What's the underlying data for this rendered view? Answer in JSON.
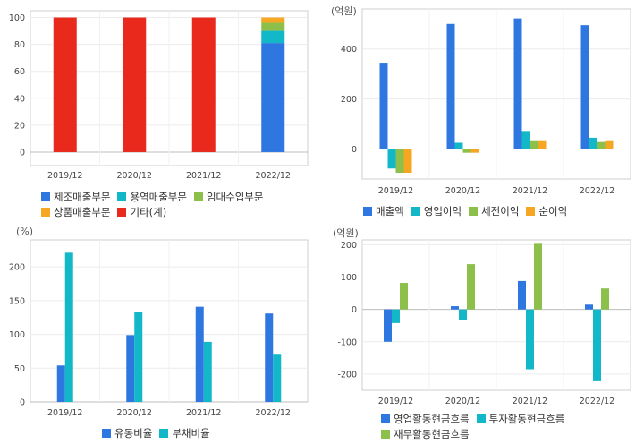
{
  "chart_data": [
    {
      "id": "tl",
      "type": "bar",
      "stacked": true,
      "unit": "",
      "categories": [
        "2019/12",
        "2020/12",
        "2021/12",
        "2022/12"
      ],
      "ylim": [
        -10,
        105
      ],
      "yticks": [
        0,
        20,
        40,
        60,
        80,
        100
      ],
      "series": [
        {
          "name": "제조매출부문",
          "color": "#2f77e0",
          "values": [
            0,
            0,
            0,
            81
          ]
        },
        {
          "name": "용역매출부문",
          "color": "#12b8c8",
          "values": [
            0,
            0,
            0,
            9
          ]
        },
        {
          "name": "임대수입부문",
          "color": "#8cc04a",
          "values": [
            0,
            0,
            0,
            6
          ]
        },
        {
          "name": "상품매출부문",
          "color": "#f5a623",
          "values": [
            0,
            0,
            0,
            4
          ]
        },
        {
          "name": "기타(계)",
          "color": "#e8291c",
          "values": [
            100,
            100,
            100,
            0
          ]
        }
      ]
    },
    {
      "id": "tr",
      "type": "bar",
      "stacked": false,
      "unit": "(억원)",
      "categories": [
        "2019/12",
        "2020/12",
        "2021/12",
        "2022/12"
      ],
      "ylim": [
        -120,
        560
      ],
      "yticks": [
        0,
        200,
        400
      ],
      "series": [
        {
          "name": "매출액",
          "color": "#2f77e0",
          "values": [
            345,
            500,
            522,
            495
          ]
        },
        {
          "name": "영업이익",
          "color": "#12b8c8",
          "values": [
            -78,
            25,
            72,
            45
          ]
        },
        {
          "name": "세전이익",
          "color": "#8cc04a",
          "values": [
            -95,
            -15,
            35,
            28
          ]
        },
        {
          "name": "순이익",
          "color": "#f5a623",
          "values": [
            -95,
            -15,
            35,
            35
          ]
        }
      ]
    },
    {
      "id": "bl",
      "type": "bar",
      "stacked": false,
      "unit": "(%)",
      "categories": [
        "2019/12",
        "2020/12",
        "2021/12",
        "2022/12"
      ],
      "ylim": [
        0,
        240
      ],
      "yticks": [
        0,
        50,
        100,
        150,
        200
      ],
      "series": [
        {
          "name": "유동비율",
          "color": "#2f77e0",
          "values": [
            54,
            99,
            141,
            131
          ]
        },
        {
          "name": "부채비율",
          "color": "#12b8c8",
          "values": [
            221,
            133,
            89,
            70
          ]
        }
      ]
    },
    {
      "id": "br",
      "type": "bar",
      "stacked": false,
      "unit": "(억원)",
      "categories": [
        "2019/12",
        "2020/12",
        "2021/12",
        "2022/12"
      ],
      "ylim": [
        -250,
        215
      ],
      "yticks": [
        -200,
        -100,
        0,
        100,
        200
      ],
      "series": [
        {
          "name": "영업활동현금흐름",
          "color": "#2f77e0",
          "values": [
            -100,
            10,
            88,
            15
          ]
        },
        {
          "name": "투자활동현금흐름",
          "color": "#12b8c8",
          "values": [
            -42,
            -33,
            -185,
            -222
          ]
        },
        {
          "name": "재무활동현금흐름",
          "color": "#8cc04a",
          "values": [
            82,
            140,
            203,
            65
          ]
        }
      ]
    }
  ]
}
